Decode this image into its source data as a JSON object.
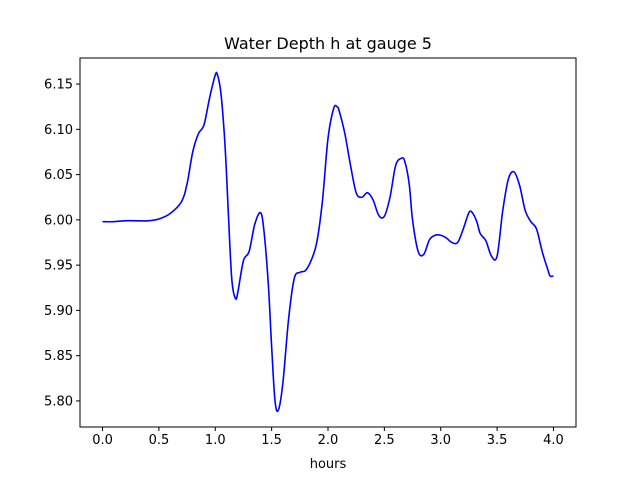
{
  "chart_data": {
    "type": "line",
    "title": "Water Depth h at gauge 5",
    "xlabel": "hours",
    "ylabel": "",
    "xlim": [
      -0.2,
      4.2
    ],
    "ylim": [
      5.7712,
      6.1788
    ],
    "xticks": [
      0.0,
      0.5,
      1.0,
      1.5,
      2.0,
      2.5,
      3.0,
      3.5,
      4.0
    ],
    "xtick_labels": [
      "0.0",
      "0.5",
      "1.0",
      "1.5",
      "2.0",
      "2.5",
      "3.0",
      "3.5",
      "4.0"
    ],
    "yticks": [
      5.8,
      5.85,
      5.9,
      5.95,
      6.0,
      6.05,
      6.1,
      6.15
    ],
    "ytick_labels": [
      "5.80",
      "5.85",
      "5.90",
      "5.95",
      "6.00",
      "6.05",
      "6.10",
      "6.15"
    ],
    "grid": false,
    "series": [
      {
        "color": "#0000ff",
        "x": [
          0.0,
          0.1,
          0.2,
          0.3,
          0.4,
          0.5,
          0.6,
          0.7,
          0.75,
          0.8,
          0.85,
          0.9,
          0.95,
          1.0,
          1.02,
          1.05,
          1.08,
          1.1,
          1.13,
          1.15,
          1.18,
          1.2,
          1.25,
          1.3,
          1.35,
          1.4,
          1.43,
          1.47,
          1.5,
          1.53,
          1.56,
          1.6,
          1.65,
          1.7,
          1.75,
          1.8,
          1.85,
          1.9,
          1.95,
          2.0,
          2.05,
          2.08,
          2.1,
          2.15,
          2.2,
          2.25,
          2.3,
          2.35,
          2.4,
          2.45,
          2.5,
          2.55,
          2.6,
          2.65,
          2.68,
          2.72,
          2.75,
          2.8,
          2.85,
          2.9,
          2.95,
          3.0,
          3.05,
          3.1,
          3.15,
          3.2,
          3.25,
          3.28,
          3.32,
          3.35,
          3.4,
          3.45,
          3.5,
          3.55,
          3.6,
          3.65,
          3.7,
          3.75,
          3.8,
          3.85,
          3.9,
          3.95,
          3.97,
          4.0
        ],
        "y": [
          5.998,
          5.998,
          5.999,
          5.999,
          5.999,
          6.001,
          6.007,
          6.02,
          6.04,
          6.075,
          6.095,
          6.105,
          6.135,
          6.16,
          6.16,
          6.14,
          6.095,
          6.05,
          5.97,
          5.93,
          5.913,
          5.92,
          5.955,
          5.965,
          5.995,
          6.008,
          5.99,
          5.93,
          5.86,
          5.8,
          5.79,
          5.82,
          5.89,
          5.935,
          5.942,
          5.944,
          5.955,
          5.975,
          6.02,
          6.09,
          6.123,
          6.125,
          6.12,
          6.095,
          6.06,
          6.03,
          6.025,
          6.03,
          6.022,
          6.005,
          6.004,
          6.025,
          6.06,
          6.068,
          6.065,
          6.04,
          6.0,
          5.965,
          5.962,
          5.978,
          5.983,
          5.983,
          5.98,
          5.975,
          5.975,
          5.99,
          6.008,
          6.008,
          5.998,
          5.985,
          5.977,
          5.96,
          5.96,
          6.01,
          6.045,
          6.053,
          6.038,
          6.01,
          5.998,
          5.99,
          5.965,
          5.945,
          5.938,
          5.938
        ]
      }
    ]
  }
}
